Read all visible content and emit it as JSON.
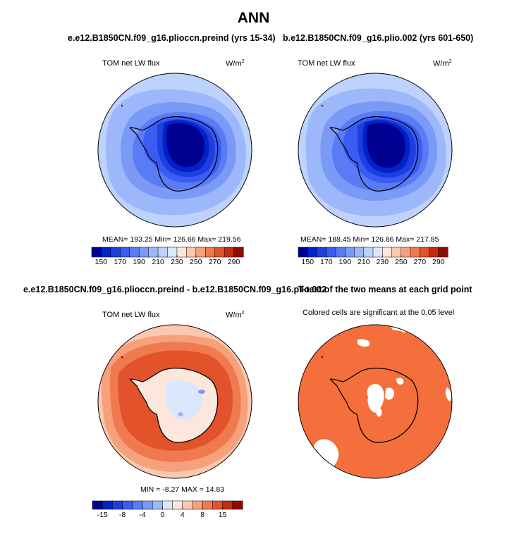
{
  "page": {
    "main_title": "ANN"
  },
  "chart_data": [
    {
      "type": "heatmap",
      "projection": "south-polar-stereographic",
      "title": "e.e12.B1850CN.f09_g16.plioccn.preind (yrs 15-34)",
      "left_label": "TOM net LW flux",
      "units": "W/m",
      "units_exponent": "2",
      "stats_text": "MEAN= 193.25    Min= 126.66    Max= 219.56",
      "stats": {
        "mean": 193.25,
        "min": 126.66,
        "max": 219.56
      },
      "colorbar": {
        "levels": [
          140,
          150,
          160,
          170,
          180,
          190,
          200,
          210,
          220,
          230,
          240,
          250,
          260,
          270,
          280,
          290
        ],
        "tick_labels": [
          "150",
          "170",
          "190",
          "210",
          "230",
          "250",
          "270",
          "290"
        ],
        "colors": [
          "#000090",
          "#0022c8",
          "#1d3fe0",
          "#3a5cf2",
          "#5a7bf6",
          "#7b99f7",
          "#9db7fb",
          "#bdd2fc",
          "#dbe7fe",
          "#fde6db",
          "#fbc8ae",
          "#f6a17b",
          "#f07a4f",
          "#e2522b",
          "#c22d10",
          "#8f0b00"
        ]
      }
    },
    {
      "type": "heatmap",
      "projection": "south-polar-stereographic",
      "title": "b.e12.B1850CN.f09_g16.plio.002 (yrs 601-650)",
      "left_label": "TOM net LW flux",
      "units": "W/m",
      "units_exponent": "2",
      "stats_text": "MEAN= 188.45    Min= 126.86    Max= 217.85",
      "stats": {
        "mean": 188.45,
        "min": 126.86,
        "max": 217.85
      },
      "colorbar": {
        "levels": [
          140,
          150,
          160,
          170,
          180,
          190,
          200,
          210,
          220,
          230,
          240,
          250,
          260,
          270,
          280,
          290
        ],
        "tick_labels": [
          "150",
          "170",
          "190",
          "210",
          "230",
          "250",
          "270",
          "290"
        ],
        "colors": [
          "#000090",
          "#0022c8",
          "#1d3fe0",
          "#3a5cf2",
          "#5a7bf6",
          "#7b99f7",
          "#9db7fb",
          "#bdd2fc",
          "#dbe7fe",
          "#fde6db",
          "#fbc8ae",
          "#f6a17b",
          "#f07a4f",
          "#e2522b",
          "#c22d10",
          "#8f0b00"
        ]
      }
    },
    {
      "type": "heatmap",
      "projection": "south-polar-stereographic",
      "title": "e.e12.B1850CN.f09_g16.plioccn.preind - b.e12.B1850CN.f09_g16.plio.002",
      "left_label": "TOM net LW flux",
      "units": "W/m",
      "units_exponent": "2",
      "stats_text": "MIN =  -8.27  MAX =  14.83",
      "stats": {
        "min": -8.27,
        "max": 14.83
      },
      "colorbar": {
        "levels": [
          -20,
          -15,
          -10,
          -8,
          -6,
          -4,
          -2,
          0,
          2,
          4,
          6,
          8,
          10,
          15,
          20
        ],
        "tick_labels": [
          "-15",
          "-8",
          "-4",
          "0",
          "4",
          "8",
          "15"
        ],
        "colors": [
          "#000090",
          "#0022c8",
          "#1d3fe0",
          "#3a5cf2",
          "#5a7bf6",
          "#7b99f7",
          "#9db7fb",
          "#dbe7fe",
          "#fde6db",
          "#fbc8ae",
          "#f6a17b",
          "#f07a4f",
          "#e2522b",
          "#c22d10",
          "#8f0b00"
        ]
      }
    },
    {
      "type": "heatmap",
      "projection": "south-polar-stereographic",
      "title": "T-test of the two means at each grid point",
      "left_label": "Colored cells are significant at the 0.05 level",
      "significant_color": "#f46f3c",
      "not_significant_color": "#ffffff"
    }
  ]
}
